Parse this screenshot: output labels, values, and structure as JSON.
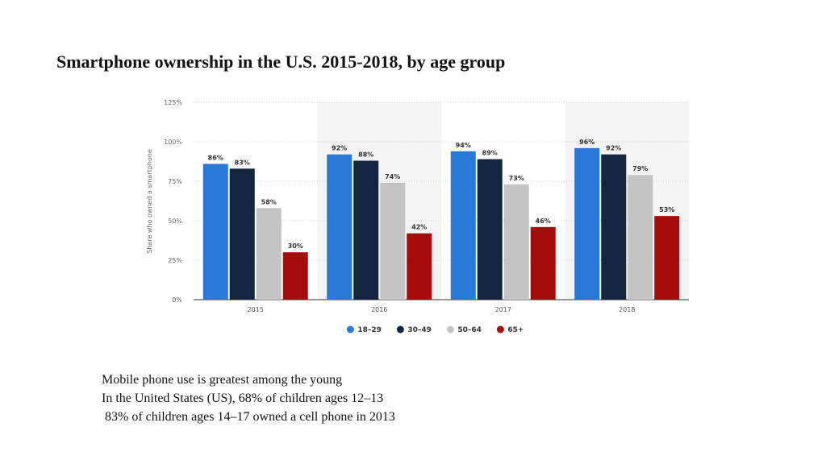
{
  "slide": {
    "title": "Smartphone ownership in the U.S. 2015-2018, by age group",
    "notes": [
      "Mobile phone use is greatest among the young",
      "In the United States (US), 68% of children ages 12–13",
      " 83% of children ages 14–17 owned a cell phone in 2013"
    ]
  },
  "chart_data": {
    "type": "bar",
    "title": "Smartphone ownership in the U.S. 2015-2018, by age group",
    "xlabel": "",
    "ylabel": "Share who owned a smartphone",
    "ylim": [
      0,
      125
    ],
    "yticks": [
      0,
      25,
      50,
      75,
      100,
      125
    ],
    "ytick_labels": [
      "0%",
      "25%",
      "50%",
      "75%",
      "100%",
      "125%"
    ],
    "grid": true,
    "legend_position": "bottom",
    "categories": [
      "2015",
      "2016",
      "2017",
      "2018"
    ],
    "series": [
      {
        "name": "18–29",
        "color": "#2979d9",
        "values": [
          86,
          92,
          94,
          96
        ]
      },
      {
        "name": "30–49",
        "color": "#14263f",
        "values": [
          83,
          88,
          89,
          92
        ]
      },
      {
        "name": "50–64",
        "color": "#c4c4c4",
        "values": [
          58,
          74,
          73,
          79
        ]
      },
      {
        "name": "65+",
        "color": "#a50d0d",
        "values": [
          30,
          42,
          46,
          53
        ]
      }
    ],
    "value_suffix": "%"
  }
}
